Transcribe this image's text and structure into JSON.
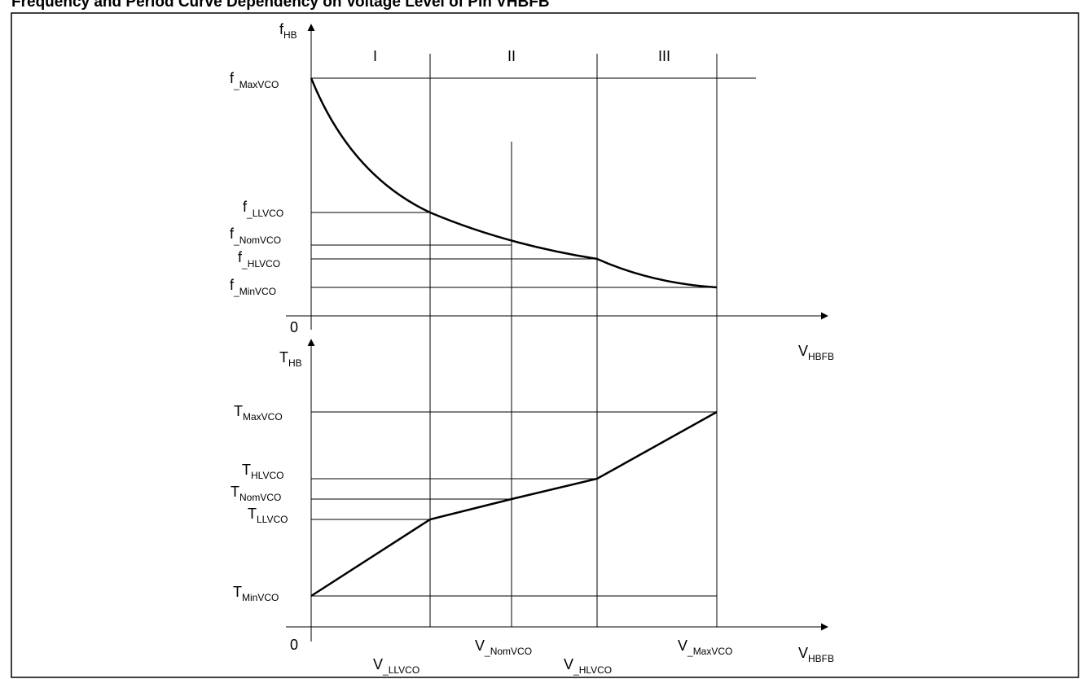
{
  "title": "Frequency and Period Curve Dependency on Voltage Level of Pin VHBFB",
  "regions": [
    "I",
    "II",
    "III"
  ],
  "top_plot": {
    "y_axis": {
      "main": "f",
      "sub": "HB"
    },
    "levels": [
      {
        "main": "f",
        "sub": "_MaxVCO"
      },
      {
        "main": "f",
        "sub": "_LLVCO"
      },
      {
        "main": "f",
        "sub": "_NomVCO"
      },
      {
        "main": "f",
        "sub": "_HLVCO"
      },
      {
        "main": "f",
        "sub": "_MinVCO"
      }
    ],
    "origin": "0",
    "x_axis": {
      "main": "V",
      "sub": "HBFB"
    }
  },
  "bottom_plot": {
    "y_axis": {
      "main": "T",
      "sub": "HB"
    },
    "levels": [
      {
        "main": "T",
        "sub": "MaxVCO"
      },
      {
        "main": "T",
        "sub": "HLVCO"
      },
      {
        "main": "T",
        "sub": "NomVCO"
      },
      {
        "main": "T",
        "sub": "LLVCO"
      },
      {
        "main": "T",
        "sub": "MinVCO"
      }
    ],
    "origin": "0",
    "x_axis": {
      "main": "V",
      "sub": "HBFB"
    },
    "x_ticks": [
      {
        "main": "V",
        "sub": "_LLVCO"
      },
      {
        "main": "V",
        "sub": "_NomVCO"
      },
      {
        "main": "V",
        "sub": "_HLVCO"
      },
      {
        "main": "V",
        "sub": "_MaxVCO"
      }
    ]
  },
  "colors": {
    "line": "#000000",
    "background": "#ffffff"
  }
}
